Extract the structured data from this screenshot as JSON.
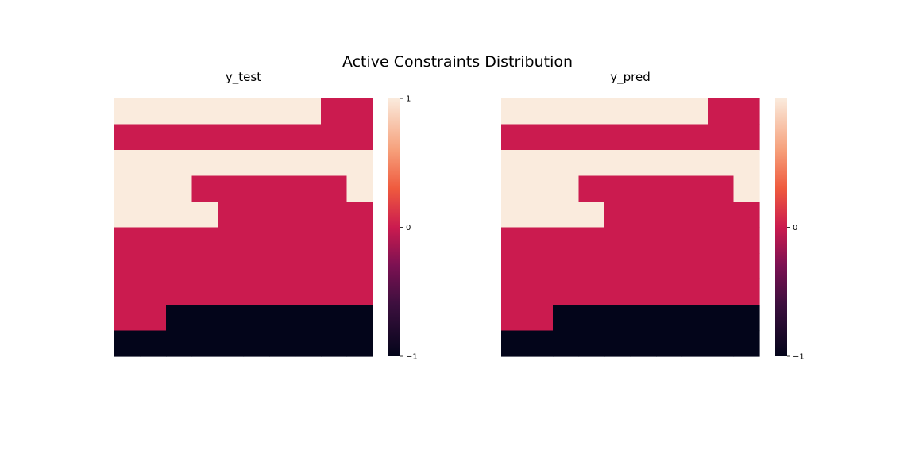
{
  "chart_data": {
    "title": "Active Constraints Distribution",
    "type": "heatmap",
    "colormap": "rocket",
    "colorbar_ticks": [
      -1,
      0,
      1
    ],
    "panels": [
      {
        "subtitle": "y_test",
        "vmin": -1,
        "vmax": 1,
        "colorbar_tick_labels": [
          "1",
          "0",
          "−1"
        ],
        "z": [
          [
            1,
            1,
            1,
            1,
            1,
            1,
            1,
            1,
            0,
            0
          ],
          [
            0,
            0,
            0,
            0,
            0,
            0,
            0,
            0,
            0,
            0
          ],
          [
            1,
            1,
            1,
            1,
            1,
            1,
            1,
            1,
            1,
            1
          ],
          [
            1,
            1,
            1,
            0,
            0,
            0,
            0,
            0,
            0,
            1
          ],
          [
            1,
            1,
            1,
            1,
            0,
            0,
            0,
            0,
            0,
            0
          ],
          [
            0,
            0,
            0,
            0,
            0,
            0,
            0,
            0,
            0,
            0
          ],
          [
            0,
            0,
            0,
            0,
            0,
            0,
            0,
            0,
            0,
            0
          ],
          [
            0,
            0,
            0,
            0,
            0,
            0,
            0,
            0,
            0,
            0
          ],
          [
            0,
            0,
            -1,
            -1,
            -1,
            -1,
            -1,
            -1,
            -1,
            -1
          ],
          [
            -1,
            -1,
            -1,
            -1,
            -1,
            -1,
            -1,
            -1,
            -1,
            -1
          ]
        ]
      },
      {
        "subtitle": "y_pred",
        "vmin": -1,
        "vmax": 1,
        "colorbar_tick_labels": [
          "",
          "0",
          "−1"
        ],
        "z": [
          [
            1,
            1,
            1,
            1,
            1,
            1,
            1,
            1,
            0,
            0
          ],
          [
            0,
            0,
            0,
            0,
            0,
            0,
            0,
            0,
            0,
            0
          ],
          [
            1,
            1,
            1,
            1,
            1,
            1,
            1,
            1,
            1,
            1
          ],
          [
            1,
            1,
            1,
            0,
            0,
            0,
            0,
            0,
            0,
            1
          ],
          [
            1,
            1,
            1,
            1,
            0,
            0,
            0,
            0,
            0,
            0
          ],
          [
            0,
            0,
            0,
            0,
            0,
            0,
            0,
            0,
            0,
            0
          ],
          [
            0,
            0,
            0,
            0,
            0,
            0,
            0,
            0,
            0,
            0
          ],
          [
            0,
            0,
            0,
            0,
            0,
            0,
            0,
            0,
            0,
            0
          ],
          [
            0,
            0,
            -1,
            -1,
            -1,
            -1,
            -1,
            -1,
            -1,
            -1
          ],
          [
            -1,
            -1,
            -1,
            -1,
            -1,
            -1,
            -1,
            -1,
            -1,
            -1
          ]
        ]
      }
    ]
  }
}
